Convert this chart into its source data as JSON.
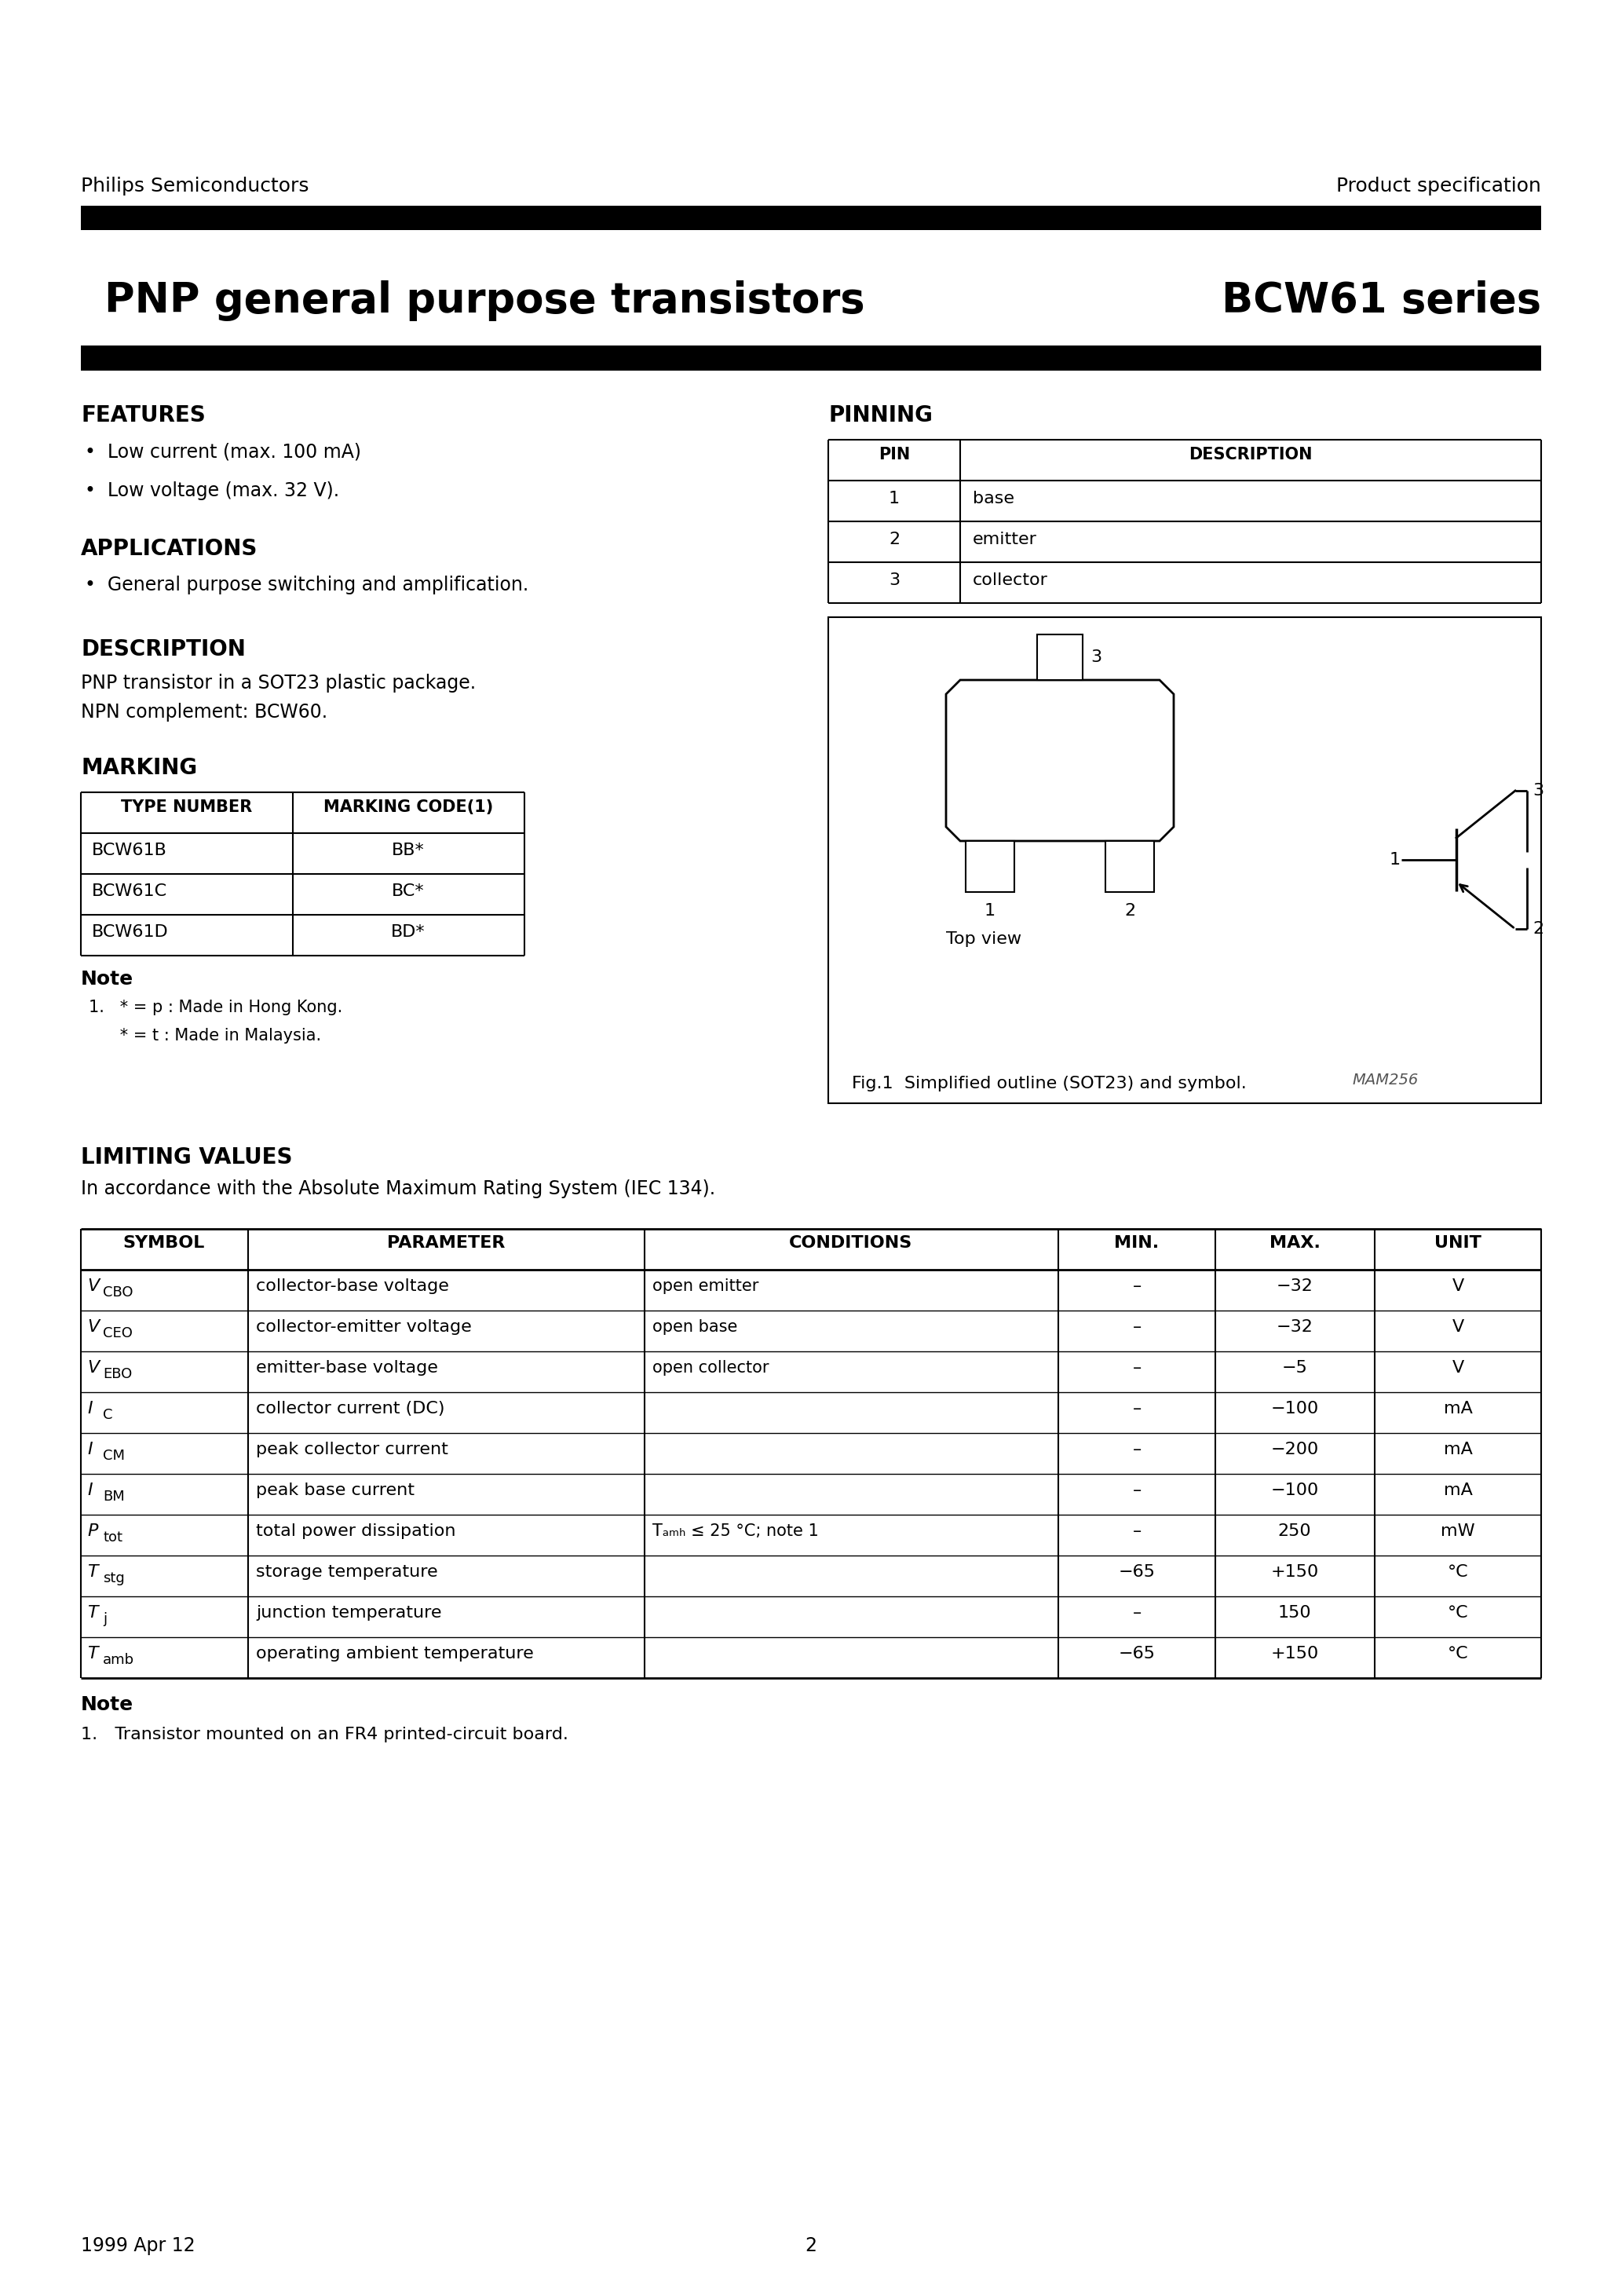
{
  "header_left": "Philips Semiconductors",
  "header_right": "Product specification",
  "page_title_left": "PNP general purpose transistors",
  "page_title_right": "BCW61 series",
  "footer_left": "1999 Apr 12",
  "footer_center": "2",
  "features_title": "FEATURES",
  "features": [
    "Low current (max. 100 mA)",
    "Low voltage (max. 32 V)."
  ],
  "applications_title": "APPLICATIONS",
  "applications": [
    "General purpose switching and amplification."
  ],
  "description_title": "DESCRIPTION",
  "description_lines": [
    "PNP transistor in a SOT23 plastic package.",
    "NPN complement: BCW60."
  ],
  "marking_title": "MARKING",
  "marking_headers": [
    "TYPE NUMBER",
    "MARKING CODE(1)"
  ],
  "marking_rows": [
    [
      "BCW61B",
      "BB*"
    ],
    [
      "BCW61C",
      "BC*"
    ],
    [
      "BCW61D",
      "BD*"
    ]
  ],
  "marking_note_header": "Note",
  "marking_note_lines": [
    "1.   * = p : Made in Hong Kong.",
    "      * = t : Made in Malaysia."
  ],
  "pinning_title": "PINNING",
  "pin_headers": [
    "PIN",
    "DESCRIPTION"
  ],
  "pin_rows": [
    [
      "1",
      "base"
    ],
    [
      "2",
      "emitter"
    ],
    [
      "3",
      "collector"
    ]
  ],
  "fig_caption": "Fig.1  Simplified outline (SOT23) and symbol.",
  "fig_watermark": "MAM256",
  "limiting_title": "LIMITING VALUES",
  "limiting_subtitle": "In accordance with the Absolute Maximum Rating System (IEC 134).",
  "limiting_headers": [
    "SYMBOL",
    "PARAMETER",
    "CONDITIONS",
    "MIN.",
    "MAX.",
    "UNIT"
  ],
  "limiting_sym_main": [
    "V",
    "V",
    "V",
    "I",
    "I",
    "I",
    "P",
    "T",
    "T",
    "T"
  ],
  "limiting_sym_sub": [
    "CBO",
    "CEO",
    "EBO",
    "C",
    "CM",
    "BM",
    "tot",
    "stg",
    "j",
    "amb"
  ],
  "limiting_params": [
    "collector-base voltage",
    "collector-emitter voltage",
    "emitter-base voltage",
    "collector current (DC)",
    "peak collector current",
    "peak base current",
    "total power dissipation",
    "storage temperature",
    "junction temperature",
    "operating ambient temperature"
  ],
  "limiting_conditions": [
    "open emitter",
    "open base",
    "open collector",
    "",
    "",
    "",
    "Tₐₘₕ ≤ 25 °C; note 1",
    "",
    "",
    ""
  ],
  "limiting_mins": [
    "–",
    "–",
    "–",
    "–",
    "–",
    "–",
    "–",
    "−65",
    "–",
    "−65"
  ],
  "limiting_maxs": [
    "−32",
    "−32",
    "−5",
    "−100",
    "−200",
    "−100",
    "250",
    "+150",
    "150",
    "+150"
  ],
  "limiting_units": [
    "V",
    "V",
    "V",
    "mA",
    "mA",
    "mA",
    "mW",
    "°C",
    "°C",
    "°C"
  ],
  "limiting_note_header": "Note",
  "limiting_note_lines": [
    "1. Transistor mounted on an FR4 printed-circuit board."
  ]
}
